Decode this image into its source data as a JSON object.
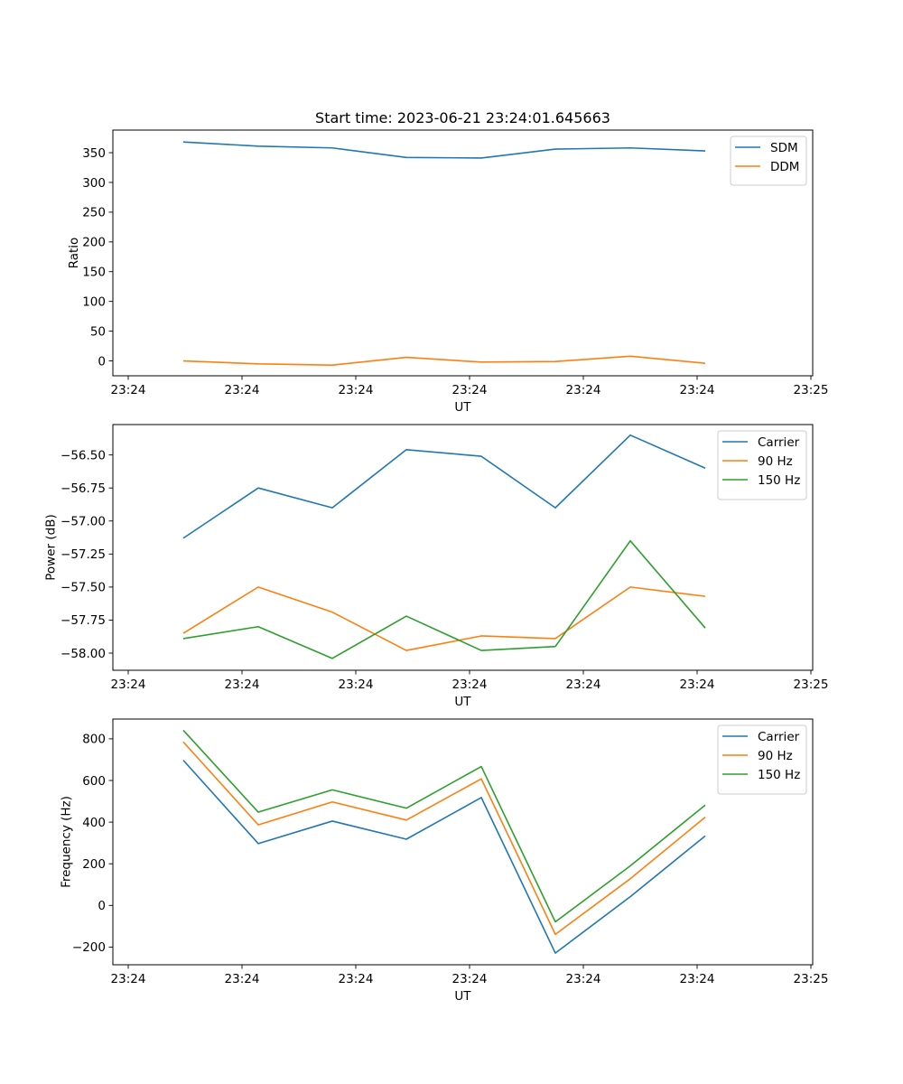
{
  "figure": {
    "title": "Start time: 2023-06-21 23:24:01.645663"
  },
  "colors": {
    "blue": "#1f77b4",
    "orange": "#ff7f0e",
    "green": "#2ca02c"
  },
  "chart_data": [
    {
      "type": "line",
      "title": "Start time: 2023-06-21 23:24:01.645663",
      "xlabel": "UT",
      "ylabel": "Ratio",
      "x_tick_labels": [
        "23:24",
        "23:24",
        "23:24",
        "23:24",
        "23:24",
        "23:24",
        "23:25"
      ],
      "y_ticks": [
        0,
        50,
        100,
        150,
        200,
        250,
        300,
        350
      ],
      "y_tick_labels": [
        "0",
        "50",
        "100",
        "150",
        "200",
        "250",
        "300",
        "350"
      ],
      "ylim": [
        -25,
        388
      ],
      "legend_position": "top-right",
      "grid": false,
      "series": [
        {
          "name": "SDM",
          "color": "#1f77b4",
          "values": [
            368,
            361,
            358,
            342,
            341,
            356,
            358,
            353
          ]
        },
        {
          "name": "DDM",
          "color": "#ff7f0e",
          "values": [
            0,
            -5,
            -7,
            6,
            -2,
            -1,
            8,
            -4
          ]
        }
      ]
    },
    {
      "type": "line",
      "title": "",
      "xlabel": "UT",
      "ylabel": "Power (dB)",
      "x_tick_labels": [
        "23:24",
        "23:24",
        "23:24",
        "23:24",
        "23:24",
        "23:24",
        "23:25"
      ],
      "y_ticks": [
        -58.0,
        -57.75,
        -57.5,
        -57.25,
        -57.0,
        -56.75,
        -56.5
      ],
      "y_tick_labels": [
        "−58.00",
        "−57.75",
        "−57.50",
        "−57.25",
        "−57.00",
        "−56.75",
        "−56.50"
      ],
      "ylim": [
        -58.13,
        -56.27
      ],
      "legend_position": "top-right",
      "grid": false,
      "series": [
        {
          "name": "Carrier",
          "color": "#1f77b4",
          "values": [
            -57.13,
            -56.75,
            -56.9,
            -56.46,
            -56.51,
            -56.9,
            -56.35,
            -56.6
          ]
        },
        {
          "name": "90 Hz",
          "color": "#ff7f0e",
          "values": [
            -57.85,
            -57.5,
            -57.69,
            -57.98,
            -57.87,
            -57.89,
            -57.5,
            -57.57
          ]
        },
        {
          "name": "150 Hz",
          "color": "#2ca02c",
          "values": [
            -57.89,
            -57.8,
            -58.04,
            -57.72,
            -57.98,
            -57.95,
            -57.15,
            -57.81
          ]
        }
      ]
    },
    {
      "type": "line",
      "title": "",
      "xlabel": "UT",
      "ylabel": "Frequency (Hz)",
      "x_tick_labels": [
        "23:24",
        "23:24",
        "23:24",
        "23:24",
        "23:24",
        "23:24",
        "23:25"
      ],
      "y_ticks": [
        -200,
        0,
        200,
        400,
        600,
        800
      ],
      "y_tick_labels": [
        "−200",
        "0",
        "200",
        "400",
        "600",
        "800"
      ],
      "ylim": [
        -285,
        895
      ],
      "legend_position": "top-right",
      "grid": false,
      "series": [
        {
          "name": "Carrier",
          "color": "#1f77b4",
          "values": [
            697,
            297,
            405,
            318,
            518,
            -229,
            42,
            334
          ]
        },
        {
          "name": "90 Hz",
          "color": "#ff7f0e",
          "values": [
            785,
            387,
            497,
            410,
            608,
            -139,
            128,
            424
          ]
        },
        {
          "name": "150 Hz",
          "color": "#2ca02c",
          "values": [
            841,
            448,
            555,
            467,
            667,
            -79,
            190,
            482
          ]
        }
      ]
    }
  ]
}
